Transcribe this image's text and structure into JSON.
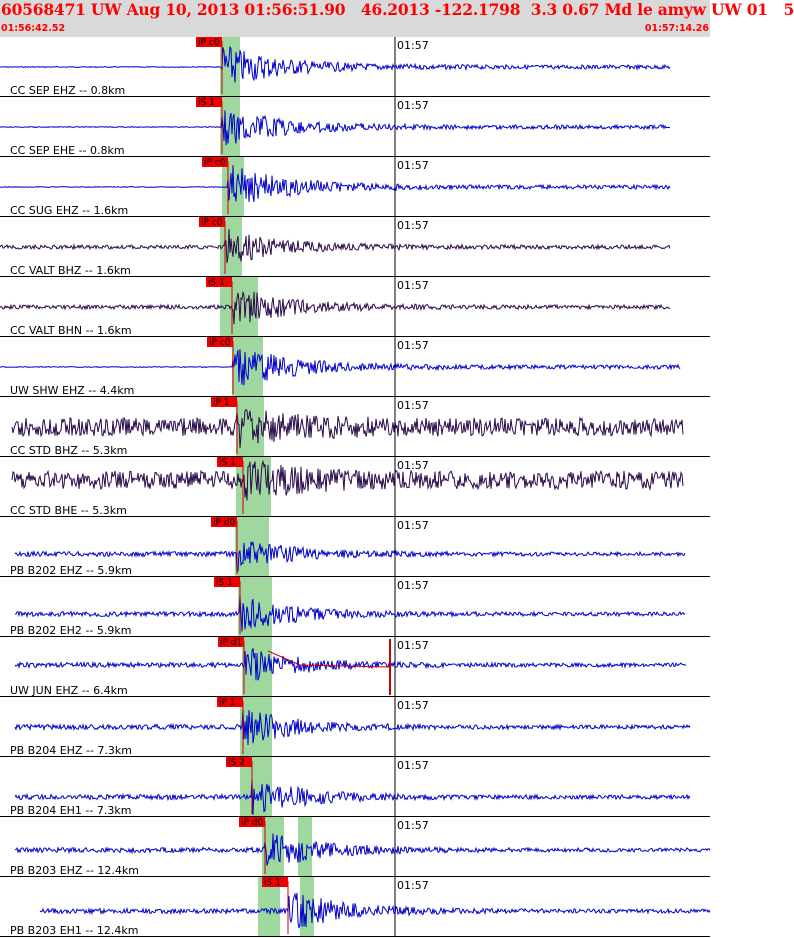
{
  "header": {
    "title": "60568471 UW Aug 10, 2013 01:56:51.90   46.2013 -122.1798  3.3 0.67 Md le amyw UW 01   5",
    "start_time": "01:56:42.52",
    "end_time": "01:57:14.26"
  },
  "colors": {
    "header_bg": "#d9d9d9",
    "header_text": "#ff0000",
    "trace_blue": "#0000cc",
    "trace_dark": "#2a0a4a",
    "pick_box": "#ee0000",
    "pick_line": "#cc0000",
    "window_band": "#9fd89f"
  },
  "traces": [
    {
      "label": "CC SEP EHZ -- 0.8km",
      "minute": "01:57",
      "pick": "iP c0",
      "color": "blue",
      "amp": 1.0
    },
    {
      "label": "CC SEP EHE -- 0.8km",
      "minute": "01:57",
      "pick": "iS 1",
      "color": "blue",
      "amp": 0.9
    },
    {
      "label": "CC SUG EHZ -- 1.6km",
      "minute": "01:57",
      "pick": "iP c0",
      "color": "blue",
      "amp": 1.0
    },
    {
      "label": "CC VALT BHZ -- 1.6km",
      "minute": "01:57",
      "pick": "iP c0",
      "color": "dark",
      "amp": 0.8
    },
    {
      "label": "CC VALT BHN -- 1.6km",
      "minute": "01:57",
      "pick": "iS 1",
      "color": "dark",
      "amp": 0.9
    },
    {
      "label": "UW SHW EHZ -- 4.4km",
      "minute": "01:57",
      "pick": "iP c0",
      "color": "blue",
      "amp": 1.0
    },
    {
      "label": "CC STD BHZ -- 5.3km",
      "minute": "01:57",
      "pick": "iP 1",
      "color": "dark",
      "amp": 1.0
    },
    {
      "label": "CC STD BHE -- 5.3km",
      "minute": "01:57",
      "pick": "iS 1",
      "color": "dark",
      "amp": 1.0
    },
    {
      "label": "PB B202 EHZ -- 5.9km",
      "minute": "01:57",
      "pick": "iP d0",
      "color": "blue",
      "amp": 0.7
    },
    {
      "label": "PB B202 EH2 -- 5.9km",
      "minute": "01:57",
      "pick": "iS 1",
      "color": "blue",
      "amp": 0.8
    },
    {
      "label": "UW JUN EHZ -- 6.4km",
      "minute": "01:57",
      "pick": "iP d1",
      "color": "blue",
      "amp": 0.8
    },
    {
      "label": "PB B204 EHZ -- 7.3km",
      "minute": "01:57",
      "pick": "iP 1",
      "color": "blue",
      "amp": 0.8
    },
    {
      "label": "PB B204 EH1 -- 7.3km",
      "minute": "01:57",
      "pick": "iS 2",
      "color": "blue",
      "amp": 0.8
    },
    {
      "label": "PB B203 EHZ -- 12.4km",
      "minute": "01:57",
      "pick": "iP d0",
      "color": "blue",
      "amp": 0.9
    },
    {
      "label": "PB B203 EH1 -- 12.4km",
      "minute": "01:57",
      "pick": "iS 1",
      "color": "blue",
      "amp": 0.9
    }
  ]
}
